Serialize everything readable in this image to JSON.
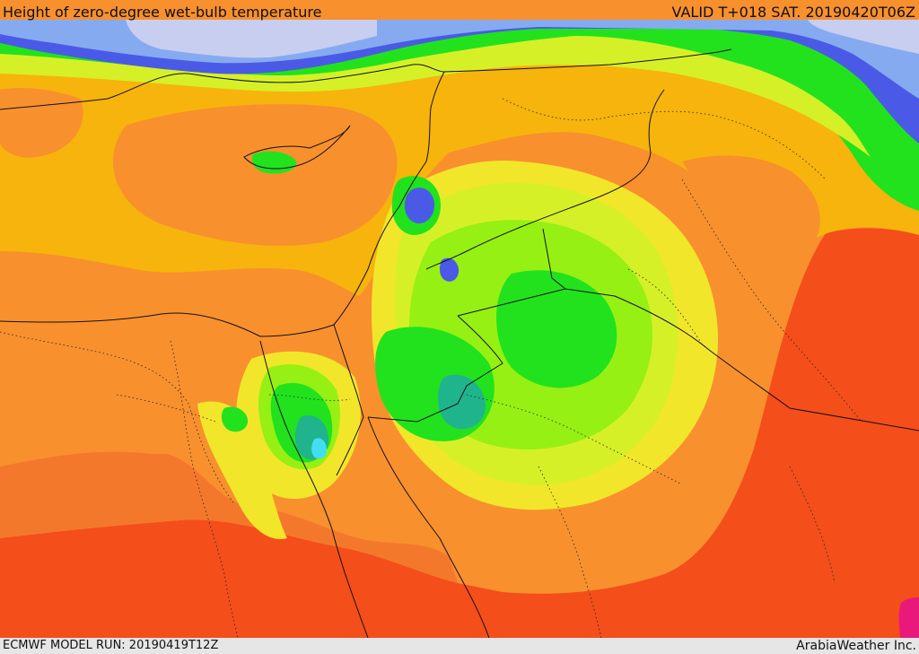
{
  "header": {
    "title": "Height of zero-degree wet-bulb temperature",
    "valid_time": "VALID T+018 SAT. 20190420T06Z"
  },
  "footer": {
    "model_run": "ECMWF MODEL RUN: 20190419T12Z",
    "credit": "ArabiaWeather Inc."
  },
  "palette": {
    "deep_red": "#f44e1a",
    "orange_red": "#f4782c",
    "orange": "#f8902e",
    "amber": "#f6b40c",
    "yellow": "#f2e62a",
    "yellow_green": "#d6f028",
    "lime": "#96f014",
    "green": "#22e21e",
    "bright_green": "#10d838",
    "teal": "#20b48c",
    "cyan": "#40e0f0",
    "blue": "#4a5ae6",
    "light_blue": "#86aaf0",
    "lavender": "#c8cef0",
    "magenta": "#e8197a"
  }
}
